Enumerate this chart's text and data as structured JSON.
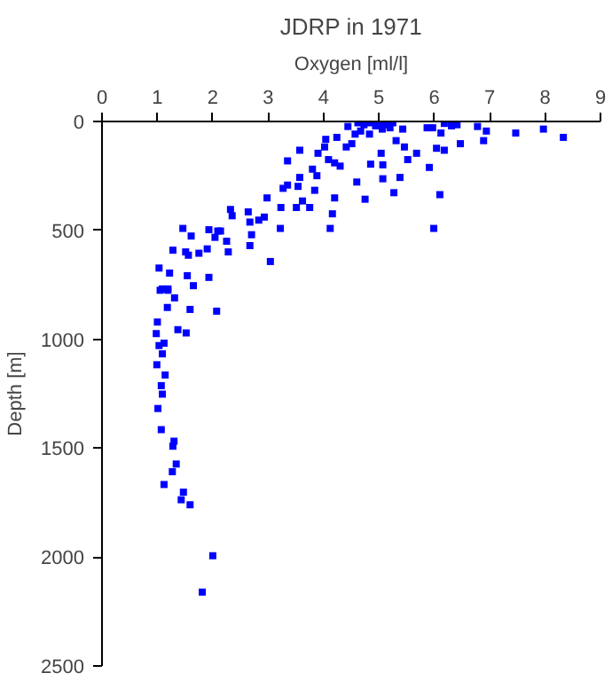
{
  "chart_data": {
    "type": "scatter",
    "title": "JDRP in 1971",
    "xlabel": "Oxygen [ml/l]",
    "ylabel": "Depth [m]",
    "marker": "square",
    "grid": false,
    "xlim": [
      0,
      9
    ],
    "xticks": [
      0,
      1,
      2,
      3,
      4,
      5,
      6,
      7,
      8,
      9
    ],
    "ylim": [
      2500,
      0
    ],
    "yticks": [
      0,
      500,
      1000,
      1500,
      2000,
      2500
    ],
    "series": [
      {
        "color": "#0000ff",
        "x": [
          4.44,
          4.62,
          4.73,
          4.83,
          4.94,
          5.04,
          5.15,
          5.25,
          4.67,
          4.83,
          4.57,
          5.06,
          5.2,
          5.43,
          5.87,
          5.97,
          6.12,
          6.18,
          6.31,
          6.41,
          6.78,
          6.94,
          7.47,
          7.97,
          8.33,
          6.47,
          6.89,
          6.18,
          6.04,
          5.91,
          6.1,
          5.99,
          5.52,
          5.68,
          5.46,
          5.31,
          5.04,
          5.07,
          5.07,
          5.27,
          5.38,
          4.85,
          4.6,
          4.75,
          4.41,
          4.51,
          4.24,
          4.04,
          4.02,
          3.9,
          4.09,
          4.2,
          4.3,
          3.8,
          3.88,
          3.57,
          3.35,
          3.57,
          3.54,
          3.27,
          3.35,
          2.98,
          3.23,
          3.51,
          3.62,
          3.75,
          3.84,
          4.2,
          4.16,
          4.12,
          3.22,
          2.93,
          2.83,
          2.67,
          2.64,
          2.7,
          2.67,
          3.04,
          2.32,
          2.35,
          2.09,
          2.14,
          1.93,
          2.04,
          2.25,
          2.28,
          1.9,
          1.75,
          1.61,
          1.46,
          1.51,
          1.56,
          1.28,
          1.03,
          1.22,
          1.54,
          1.93,
          1.65,
          1.09,
          1.19,
          1.05,
          1.19,
          1.31,
          1.18,
          1.59,
          2.07,
          1.0,
          0.98,
          1.37,
          1.52,
          1.12,
          1.03,
          1.09,
          0.99,
          1.14,
          1.07,
          1.09,
          1.01,
          1.07,
          1.3,
          1.28,
          1.34,
          1.27,
          1.12,
          1.47,
          1.43,
          1.59,
          2.0,
          1.81
        ],
        "values": [
          23,
          6,
          15,
          6,
          20,
          6,
          15,
          6,
          44,
          58,
          58,
          35,
          29,
          35,
          29,
          29,
          53,
          9,
          20,
          15,
          23,
          44,
          53,
          35,
          73,
          102,
          88,
          132,
          123,
          211,
          336,
          491,
          175,
          146,
          117,
          88,
          146,
          199,
          263,
          327,
          257,
          196,
          278,
          357,
          117,
          102,
          73,
          82,
          117,
          146,
          175,
          190,
          205,
          219,
          249,
          132,
          181,
          257,
          298,
          307,
          292,
          351,
          395,
          395,
          365,
          395,
          316,
          351,
          424,
          491,
          491,
          439,
          453,
          462,
          415,
          520,
          570,
          643,
          404,
          433,
          503,
          503,
          497,
          532,
          550,
          599,
          585,
          605,
          526,
          491,
          599,
          614,
          591,
          673,
          696,
          708,
          716,
          754,
          769,
          769,
          775,
          775,
          810,
          854,
          863,
          871,
          921,
          974,
          956,
          971,
          1018,
          1029,
          1067,
          1117,
          1164,
          1213,
          1252,
          1318,
          1415,
          1468,
          1491,
          1573,
          1608,
          1667,
          1702,
          1737,
          1760,
          1994,
          2161
        ]
      }
    ]
  }
}
